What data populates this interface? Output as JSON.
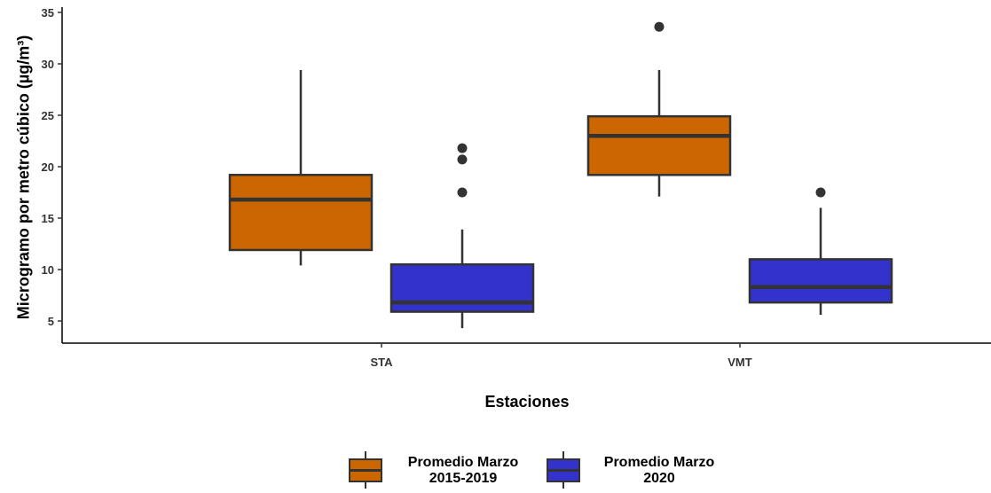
{
  "chart_data": {
    "type": "boxplot",
    "title": "",
    "xlabel": "Estaciones",
    "ylabel": "Microgramo por metro cúbico (µg/m³)",
    "ylim": [
      3,
      35
    ],
    "yticks": [
      5,
      10,
      15,
      20,
      25,
      30,
      35
    ],
    "categories": [
      "STA",
      "VMT"
    ],
    "legend_position": "bottom",
    "grid": false,
    "series": [
      {
        "name_lines": [
          "Promedio Marzo",
          "2015-2019"
        ],
        "color": "#CC6600",
        "boxes": [
          {
            "category": "STA",
            "whisker_low": 10.4,
            "q1": 11.9,
            "median": 16.8,
            "q3": 19.2,
            "whisker_high": 29.4,
            "outliers": []
          },
          {
            "category": "VMT",
            "whisker_low": 17.1,
            "q1": 19.2,
            "median": 23.0,
            "q3": 24.9,
            "whisker_high": 29.4,
            "outliers": [
              33.6
            ]
          }
        ]
      },
      {
        "name_lines": [
          "Promedio Marzo",
          "2020"
        ],
        "color": "#3333CC",
        "boxes": [
          {
            "category": "STA",
            "whisker_low": 4.3,
            "q1": 5.9,
            "median": 6.8,
            "q3": 10.5,
            "whisker_high": 13.9,
            "outliers": [
              17.5,
              20.7,
              21.8
            ]
          },
          {
            "category": "VMT",
            "whisker_low": 5.6,
            "q1": 6.8,
            "median": 8.3,
            "q3": 11.0,
            "whisker_high": 16.0,
            "outliers": [
              17.5
            ]
          }
        ]
      }
    ]
  }
}
